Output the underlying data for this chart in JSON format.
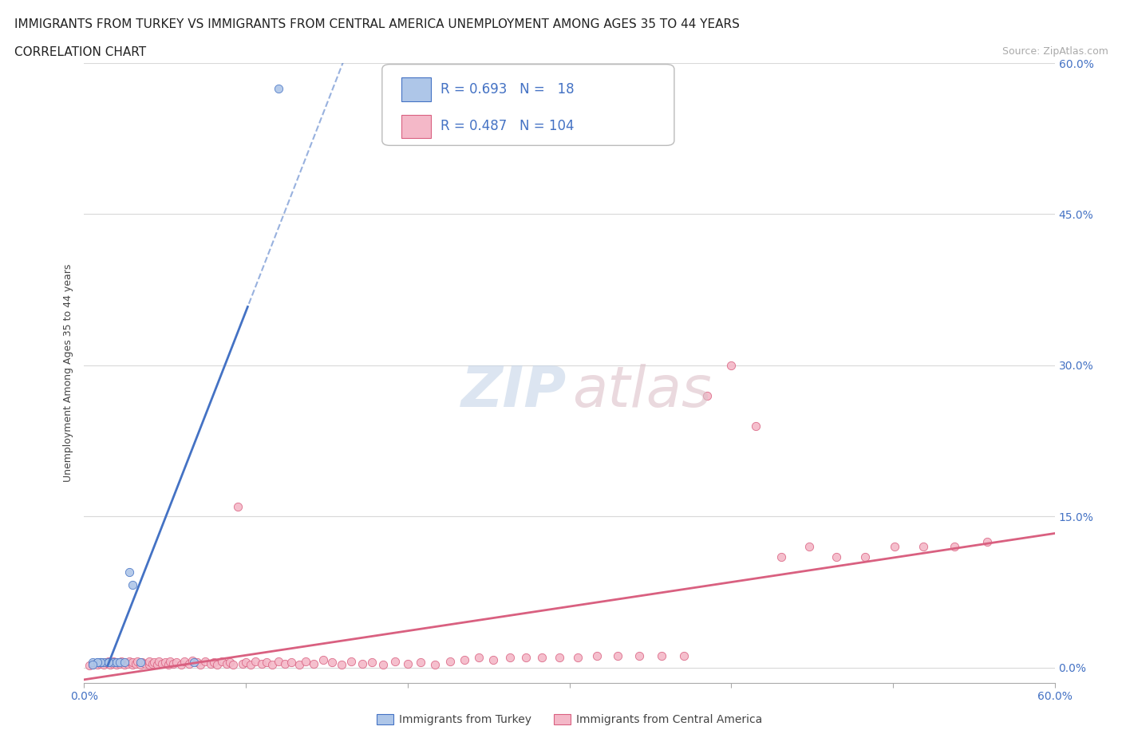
{
  "title_line1": "IMMIGRANTS FROM TURKEY VS IMMIGRANTS FROM CENTRAL AMERICA UNEMPLOYMENT AMONG AGES 35 TO 44 YEARS",
  "title_line2": "CORRELATION CHART",
  "source_text": "Source: ZipAtlas.com",
  "ylabel": "Unemployment Among Ages 35 to 44 years",
  "turkey_color": "#aec6e8",
  "turkey_line_color": "#4472c4",
  "ca_color": "#f4b8c8",
  "ca_line_color": "#d96080",
  "legend_text_color": "#4472c4",
  "right_tick_color": "#4472c4",
  "grid_color": "#d0d0d0",
  "background_color": "#ffffff",
  "title_fontsize": 11,
  "axis_label_fontsize": 9,
  "tick_fontsize": 10,
  "legend_fontsize": 12,
  "xlim": [
    0.0,
    0.6
  ],
  "ylim": [
    -0.015,
    0.6
  ],
  "x_ticks": [
    0.0,
    0.1,
    0.2,
    0.3,
    0.4,
    0.5,
    0.6
  ],
  "x_tick_labels": [
    "0.0%",
    "",
    "",
    "",
    "",
    "",
    "60.0%"
  ],
  "y_ticks": [
    0.0,
    0.15,
    0.3,
    0.45,
    0.6
  ],
  "y_tick_labels_right": [
    "0.0%",
    "15.0%",
    "30.0%",
    "45.0%",
    "60.0%"
  ],
  "turkey_R": 0.693,
  "turkey_N": 18,
  "ca_R": 0.487,
  "ca_N": 104,
  "turkey_x": [
    0.005,
    0.008,
    0.01,
    0.012,
    0.015,
    0.018,
    0.02,
    0.022,
    0.025,
    0.028,
    0.03,
    0.035,
    0.015,
    0.01,
    0.008,
    0.005,
    0.12,
    0.068
  ],
  "turkey_y": [
    0.005,
    0.005,
    0.005,
    0.005,
    0.005,
    0.005,
    0.005,
    0.005,
    0.005,
    0.095,
    0.082,
    0.005,
    0.005,
    0.005,
    0.005,
    0.003,
    0.575,
    0.005
  ],
  "ca_x": [
    0.003,
    0.005,
    0.006,
    0.008,
    0.01,
    0.01,
    0.012,
    0.013,
    0.015,
    0.015,
    0.016,
    0.018,
    0.018,
    0.02,
    0.02,
    0.022,
    0.023,
    0.025,
    0.025,
    0.027,
    0.028,
    0.03,
    0.03,
    0.032,
    0.033,
    0.035,
    0.036,
    0.038,
    0.04,
    0.04,
    0.042,
    0.043,
    0.045,
    0.046,
    0.048,
    0.05,
    0.052,
    0.053,
    0.055,
    0.057,
    0.06,
    0.062,
    0.065,
    0.067,
    0.07,
    0.072,
    0.075,
    0.078,
    0.08,
    0.082,
    0.085,
    0.088,
    0.09,
    0.092,
    0.095,
    0.098,
    0.1,
    0.103,
    0.106,
    0.11,
    0.113,
    0.116,
    0.12,
    0.124,
    0.128,
    0.133,
    0.137,
    0.142,
    0.148,
    0.153,
    0.159,
    0.165,
    0.172,
    0.178,
    0.185,
    0.192,
    0.2,
    0.208,
    0.217,
    0.226,
    0.235,
    0.244,
    0.253,
    0.263,
    0.273,
    0.283,
    0.294,
    0.305,
    0.317,
    0.33,
    0.343,
    0.357,
    0.371,
    0.385,
    0.4,
    0.415,
    0.431,
    0.448,
    0.465,
    0.483,
    0.501,
    0.519,
    0.538,
    0.558
  ],
  "ca_y": [
    0.002,
    0.003,
    0.004,
    0.003,
    0.004,
    0.005,
    0.003,
    0.005,
    0.004,
    0.006,
    0.003,
    0.004,
    0.006,
    0.005,
    0.003,
    0.004,
    0.006,
    0.003,
    0.005,
    0.004,
    0.006,
    0.003,
    0.005,
    0.004,
    0.006,
    0.003,
    0.005,
    0.004,
    0.003,
    0.006,
    0.004,
    0.005,
    0.003,
    0.006,
    0.004,
    0.005,
    0.003,
    0.006,
    0.004,
    0.005,
    0.003,
    0.006,
    0.004,
    0.007,
    0.005,
    0.003,
    0.006,
    0.004,
    0.005,
    0.003,
    0.006,
    0.004,
    0.005,
    0.003,
    0.16,
    0.004,
    0.005,
    0.003,
    0.006,
    0.004,
    0.005,
    0.003,
    0.006,
    0.004,
    0.005,
    0.003,
    0.006,
    0.004,
    0.008,
    0.005,
    0.003,
    0.006,
    0.004,
    0.005,
    0.003,
    0.006,
    0.004,
    0.005,
    0.003,
    0.006,
    0.008,
    0.01,
    0.008,
    0.01,
    0.01,
    0.01,
    0.01,
    0.01,
    0.012,
    0.012,
    0.012,
    0.012,
    0.012,
    0.27,
    0.3,
    0.24,
    0.11,
    0.12,
    0.11,
    0.11,
    0.12,
    0.12,
    0.12,
    0.125
  ],
  "watermark_zip_color": "#c5d5e8",
  "watermark_atlas_color": "#ddc0c8"
}
